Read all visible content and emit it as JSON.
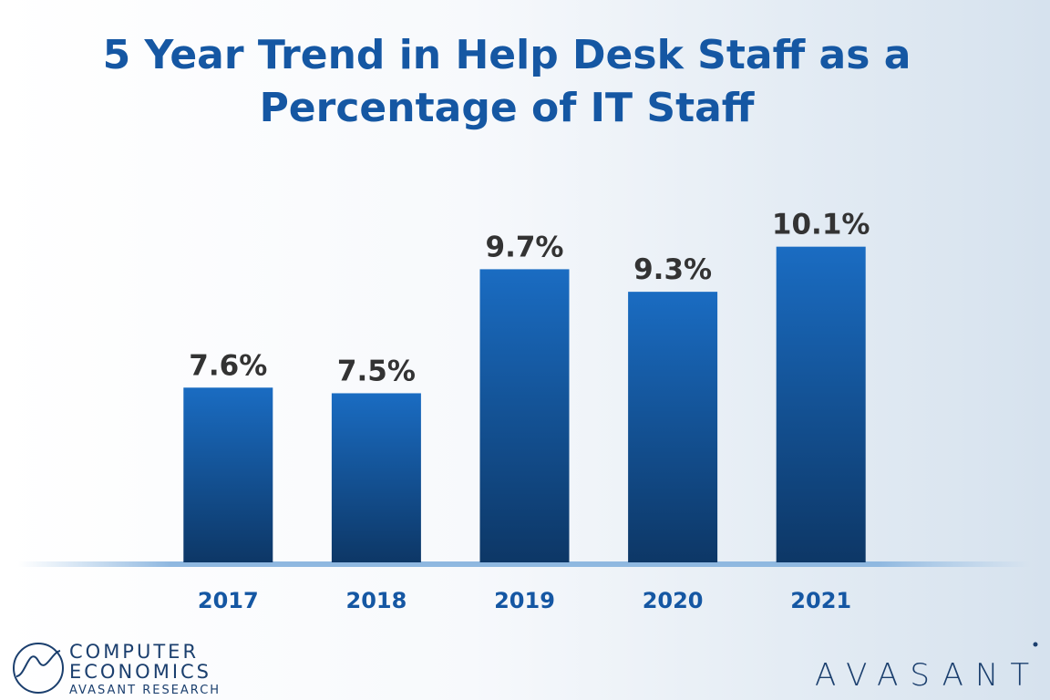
{
  "chart_data": {
    "type": "bar",
    "title": "5 Year Trend in Help Desk Staff as a Percentage of IT Staff",
    "categories": [
      "2017",
      "2018",
      "2019",
      "2020",
      "2021"
    ],
    "values": [
      7.6,
      7.5,
      9.7,
      9.3,
      10.1
    ],
    "value_labels": [
      "7.6%",
      "7.5%",
      "9.7%",
      "9.3%",
      "10.1%"
    ],
    "color": "#1565b8",
    "ylim": [
      4.5,
      11
    ]
  },
  "branding": {
    "left_logo": [
      "COMPUTER",
      "ECONOMICS",
      "AVASANT RESEARCH"
    ],
    "right_logo": "AVASANT"
  }
}
